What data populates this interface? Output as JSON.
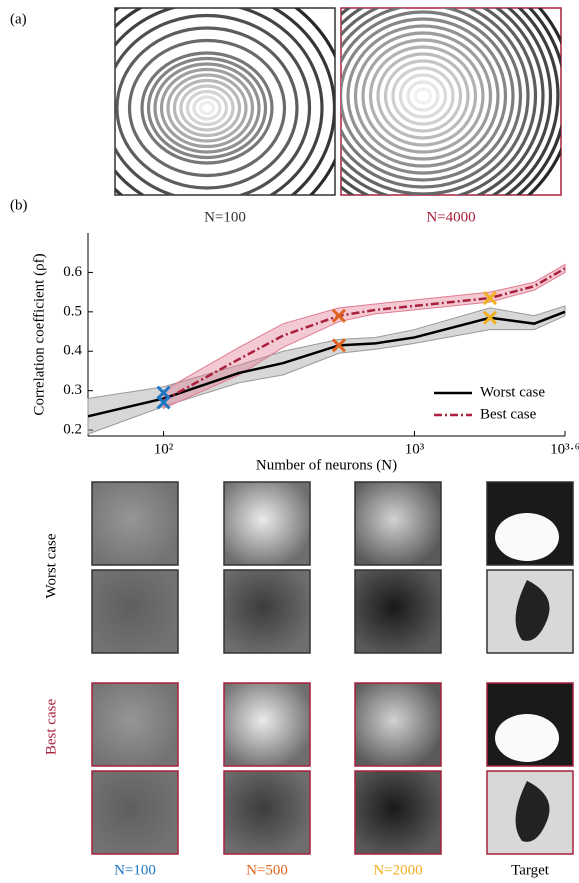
{
  "panel_labels": [
    "(a)",
    "(b)"
  ],
  "panel_a": {
    "captions": [
      {
        "label": "N=100",
        "color": "#333333"
      },
      {
        "label": "N=4000",
        "color": "#a8203c"
      }
    ]
  },
  "chart_data": {
    "type": "line",
    "xlabel": "Number of neurons (N)",
    "ylabel": "Correlation coefficient (ρf)",
    "xscale": "log",
    "xlim": [
      50,
      3981
    ],
    "ylim": [
      0.185,
      0.7
    ],
    "xticks": [
      {
        "value": 100,
        "label": "10²"
      },
      {
        "value": 1000,
        "label": "10³"
      },
      {
        "value": 3981,
        "label": "10³·⁶"
      }
    ],
    "yticks": [
      0.2,
      0.3,
      0.4,
      0.5,
      0.6
    ],
    "legend": "lower right",
    "series": [
      {
        "name": "Worst case",
        "color": "#000000",
        "band_color": "#9a9a9a",
        "dash": "solid",
        "x": [
          50,
          100,
          200,
          300,
          500,
          700,
          1000,
          2000,
          3000,
          3981
        ],
        "values": [
          0.235,
          0.28,
          0.345,
          0.37,
          0.415,
          0.42,
          0.435,
          0.485,
          0.47,
          0.5
        ],
        "low": [
          0.19,
          0.26,
          0.32,
          0.34,
          0.395,
          0.405,
          0.42,
          0.455,
          0.455,
          0.49
        ],
        "high": [
          0.28,
          0.31,
          0.365,
          0.4,
          0.43,
          0.435,
          0.455,
          0.51,
          0.49,
          0.515
        ]
      },
      {
        "name": "Best case",
        "color": "#a8203c",
        "band_color": "#e07a90",
        "dash": "dashdot",
        "x": [
          100,
          200,
          300,
          500,
          700,
          1000,
          2000,
          3000,
          3981
        ],
        "values": [
          0.275,
          0.38,
          0.44,
          0.49,
          0.505,
          0.515,
          0.535,
          0.565,
          0.61
        ],
        "low": [
          0.255,
          0.34,
          0.41,
          0.475,
          0.495,
          0.505,
          0.525,
          0.555,
          0.6
        ],
        "high": [
          0.3,
          0.41,
          0.47,
          0.51,
          0.52,
          0.53,
          0.55,
          0.575,
          0.62
        ]
      }
    ],
    "markers": [
      {
        "x": 100,
        "color": "#1f77c4",
        "values": [
          0.295,
          0.27
        ]
      },
      {
        "x": 500,
        "color": "#e0641e",
        "values": [
          0.415,
          0.49
        ]
      },
      {
        "x": 2000,
        "color": "#f0b020",
        "values": [
          0.485,
          0.535
        ]
      }
    ]
  },
  "image_grid": {
    "rows": [
      "Worst case",
      "Best case"
    ],
    "row_colors": [
      "#000000",
      "#a8203c"
    ],
    "columns": [
      {
        "label": "N=100",
        "color": "#1f77c4"
      },
      {
        "label": "N=500",
        "color": "#e0641e"
      },
      {
        "label": "N=2000",
        "color": "#f0b020"
      },
      {
        "label": "Target",
        "color": "#000000"
      }
    ]
  }
}
